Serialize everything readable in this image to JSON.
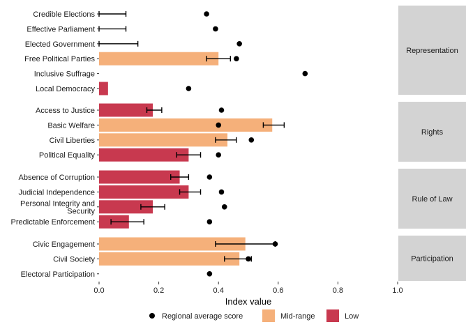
{
  "chart_data": {
    "type": "bar",
    "orientation": "horizontal",
    "xlabel": "Index value",
    "xlim": [
      0,
      1
    ],
    "x_ticks": [
      "0.0",
      "0.2",
      "0.4",
      "0.6",
      "0.8",
      "1.0"
    ],
    "grid": false,
    "legend_position": "bottom",
    "legend": {
      "point_label": "Regional average score",
      "fill_labels": [
        "Mid-range",
        "Low"
      ]
    },
    "colors": {
      "Mid-range": "#f5b07a",
      "Low": "#c8394f",
      "point": "#000000",
      "strip": "#d3d3d3"
    },
    "panels": [
      {
        "name": "Representation",
        "rows": [
          {
            "label": "Credible Elections",
            "value": 0.0,
            "category": "none",
            "err_low": 0.0,
            "err_high": 0.09,
            "regional_avg": 0.36
          },
          {
            "label": "Effective Parliament",
            "value": 0.0,
            "category": "none",
            "err_low": 0.0,
            "err_high": 0.09,
            "regional_avg": 0.39
          },
          {
            "label": "Elected Government",
            "value": 0.0,
            "category": "none",
            "err_low": 0.0,
            "err_high": 0.13,
            "regional_avg": 0.47
          },
          {
            "label": "Free Political Parties",
            "value": 0.4,
            "category": "Mid-range",
            "err_low": 0.36,
            "err_high": 0.44,
            "regional_avg": 0.46
          },
          {
            "label": "Inclusive Suffrage",
            "value": 0.0,
            "category": "none",
            "err_low": null,
            "err_high": null,
            "regional_avg": 0.69
          },
          {
            "label": "Local Democracy",
            "value": 0.03,
            "category": "Low",
            "err_low": null,
            "err_high": null,
            "regional_avg": 0.3
          }
        ]
      },
      {
        "name": "Rights",
        "rows": [
          {
            "label": "Access to Justice",
            "value": 0.18,
            "category": "Low",
            "err_low": 0.16,
            "err_high": 0.21,
            "regional_avg": 0.41
          },
          {
            "label": "Basic Welfare",
            "value": 0.58,
            "category": "Mid-range",
            "err_low": 0.55,
            "err_high": 0.62,
            "regional_avg": 0.4
          },
          {
            "label": "Civil Liberties",
            "value": 0.43,
            "category": "Mid-range",
            "err_low": 0.39,
            "err_high": 0.46,
            "regional_avg": 0.51
          },
          {
            "label": "Political Equality",
            "value": 0.3,
            "category": "Low",
            "err_low": 0.26,
            "err_high": 0.34,
            "regional_avg": 0.4
          }
        ]
      },
      {
        "name": "Rule of Law",
        "rows": [
          {
            "label": "Absence of Corruption",
            "value": 0.27,
            "category": "Low",
            "err_low": 0.24,
            "err_high": 0.3,
            "regional_avg": 0.37
          },
          {
            "label": "Judicial Independence",
            "value": 0.3,
            "category": "Low",
            "err_low": 0.27,
            "err_high": 0.34,
            "regional_avg": 0.41
          },
          {
            "label": "Personal Integrity and\nSecurity",
            "value": 0.18,
            "category": "Low",
            "err_low": 0.14,
            "err_high": 0.22,
            "regional_avg": 0.42
          },
          {
            "label": "Predictable Enforcement",
            "value": 0.1,
            "category": "Low",
            "err_low": 0.04,
            "err_high": 0.15,
            "regional_avg": 0.37
          }
        ]
      },
      {
        "name": "Participation",
        "rows": [
          {
            "label": "Civic Engagement",
            "value": 0.49,
            "category": "Mid-range",
            "err_low": 0.39,
            "err_high": 0.59,
            "regional_avg": 0.59
          },
          {
            "label": "Civil Society",
            "value": 0.47,
            "category": "Mid-range",
            "err_low": 0.42,
            "err_high": 0.51,
            "regional_avg": 0.5
          },
          {
            "label": "Electoral Participation",
            "value": 0.0,
            "category": "none",
            "err_low": null,
            "err_high": null,
            "regional_avg": 0.37
          }
        ]
      }
    ]
  }
}
